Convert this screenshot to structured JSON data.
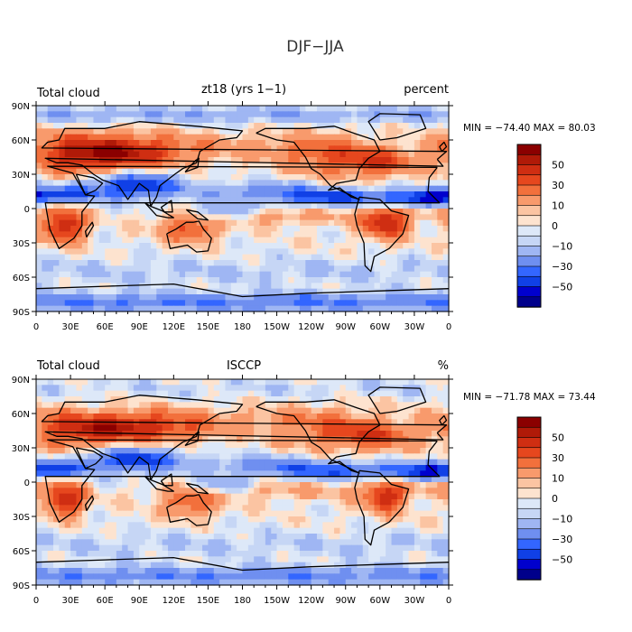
{
  "figure_title": "DJF−JJA",
  "colors": {
    "levels": [
      "#00008b",
      "#0000cd",
      "#1040e6",
      "#3366ff",
      "#6f8ff0",
      "#9fb6f3",
      "#c6d6f5",
      "#dde8f8",
      "#fde3cf",
      "#fbc4a2",
      "#f89a6c",
      "#f2703c",
      "#e6471e",
      "#cf2e12",
      "#b01a08",
      "#8b0000"
    ],
    "land": "#000000"
  },
  "panels": [
    {
      "left_label": "Total cloud",
      "center_label": "zt18 (yrs 1−1)",
      "right_label": "percent",
      "stats": "MIN = −74.40 MAX =  80.03"
    },
    {
      "left_label": "Total cloud",
      "center_label": "ISCCP",
      "right_label": "%",
      "stats": "MIN = −71.78 MAX =  73.44"
    }
  ],
  "chart_data": [
    {
      "type": "heatmap",
      "title": "zt18 (yrs 1−1)",
      "variable": "Total cloud",
      "units": "percent",
      "min": -74.4,
      "max": 80.03,
      "x_ticks": [
        "0",
        "30E",
        "60E",
        "90E",
        "120E",
        "150E",
        "180",
        "150W",
        "120W",
        "90W",
        "60W",
        "30W",
        "0"
      ],
      "y_ticks": [
        "90N",
        "60N",
        "30N",
        "0",
        "30S",
        "60S",
        "90S"
      ],
      "xlim": [
        0,
        360
      ],
      "ylim": [
        -90,
        90
      ],
      "colorbar_ticks": [
        "50",
        "30",
        "10",
        "0",
        "−10",
        "−30",
        "−50"
      ],
      "colorbar_levels": [
        -70,
        -60,
        -50,
        -40,
        -30,
        -20,
        -10,
        -5,
        0,
        5,
        10,
        20,
        30,
        40,
        50,
        60,
        70
      ]
    },
    {
      "type": "heatmap",
      "title": "ISCCP",
      "variable": "Total cloud",
      "units": "%",
      "min": -71.78,
      "max": 73.44,
      "x_ticks": [
        "0",
        "30E",
        "60E",
        "90E",
        "120E",
        "150E",
        "180",
        "150W",
        "120W",
        "90W",
        "60W",
        "30W",
        "0"
      ],
      "y_ticks": [
        "90N",
        "60N",
        "30N",
        "0",
        "30S",
        "60S",
        "90S"
      ],
      "xlim": [
        0,
        360
      ],
      "ylim": [
        -90,
        90
      ],
      "colorbar_ticks": [
        "50",
        "30",
        "10",
        "0",
        "−10",
        "−30",
        "−50"
      ],
      "colorbar_levels": [
        -70,
        -60,
        -50,
        -40,
        -30,
        -20,
        -10,
        -5,
        0,
        5,
        10,
        20,
        30,
        40,
        50,
        60,
        70
      ]
    }
  ]
}
